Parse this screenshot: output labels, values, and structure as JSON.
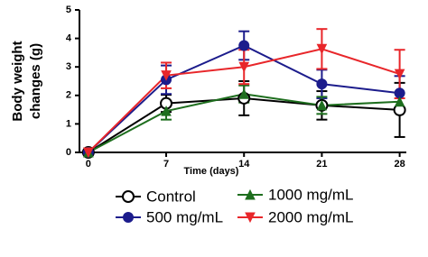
{
  "chart_data": {
    "type": "line",
    "xlabel": "Time (days)",
    "ylabel_lines": [
      "Body weight",
      "changes (g)"
    ],
    "x": [
      0,
      7,
      14,
      21,
      28
    ],
    "xlim": [
      -0.8,
      28.6
    ],
    "xticks": [
      0,
      7,
      14,
      21,
      28
    ],
    "ylim": [
      0,
      5
    ],
    "yticks": [
      0,
      1,
      2,
      3,
      4,
      5
    ],
    "series": [
      {
        "name": "Control",
        "color": "#000000",
        "marker": "open-circle",
        "values": [
          0,
          1.72,
          1.9,
          1.65,
          1.49
        ],
        "errors": [
          0,
          0.3,
          0.6,
          0.5,
          0.95
        ]
      },
      {
        "name": "500 mg/mL",
        "color": "#1c1c8c",
        "marker": "circle",
        "values": [
          0,
          2.55,
          3.75,
          2.4,
          2.08
        ],
        "errors": [
          0,
          0.5,
          0.5,
          0.5,
          0.6
        ]
      },
      {
        "name": "1000 mg/mL",
        "color": "#1e6e1e",
        "marker": "triangle-up",
        "values": [
          0,
          1.45,
          2.05,
          1.65,
          1.78
        ],
        "errors": [
          0,
          0.3,
          0.3,
          0.3,
          0.3
        ]
      },
      {
        "name": "2000 mg/mL",
        "color": "#e8262a",
        "marker": "triangle-down",
        "values": [
          0,
          2.7,
          3.0,
          3.63,
          2.75
        ],
        "errors": [
          0,
          0.45,
          0.6,
          0.7,
          0.85
        ]
      }
    ]
  }
}
